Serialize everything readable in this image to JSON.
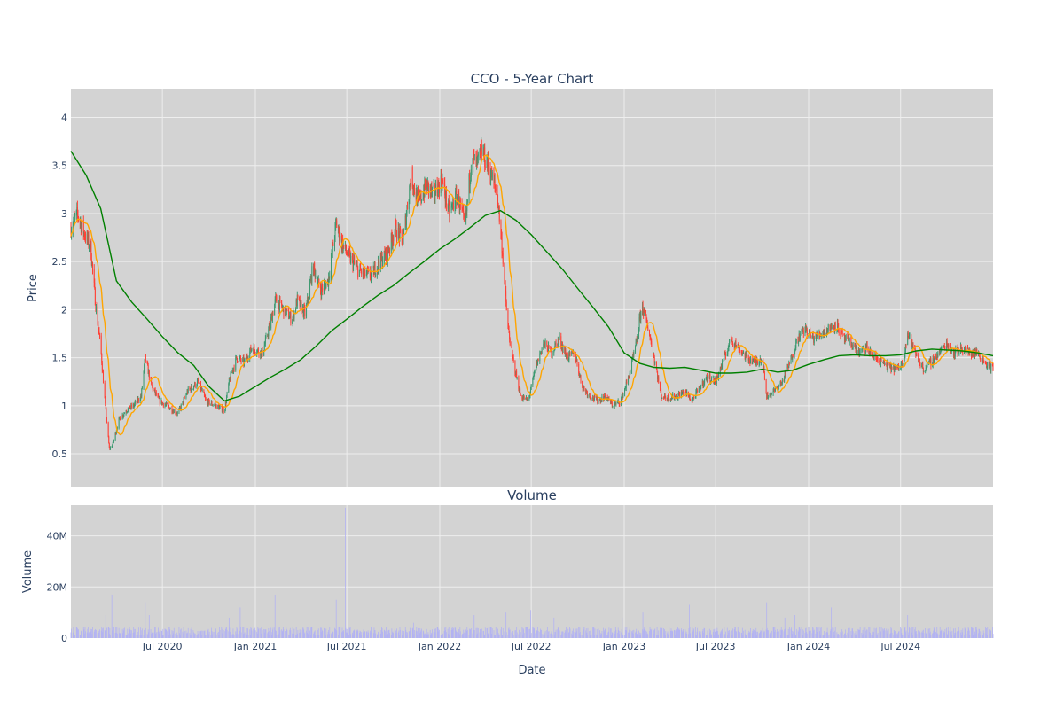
{
  "colors": {
    "plot_bg": "#d3d3d3",
    "grid": "#eeeeee",
    "up": "#3d9970",
    "down": "#ff4136",
    "ma_short": "#ffa500",
    "ma_long": "#008000",
    "volume": "#b3b3f2",
    "text": "#2a3f5f"
  },
  "chart_data": [
    {
      "type": "candlestick",
      "title": "CCO - 5-Year Chart",
      "xlabel": "",
      "ylabel": "Price",
      "xlim": [
        "2020-01-02",
        "2024-12-31"
      ],
      "ylim": [
        0.15,
        4.3
      ],
      "yticks": [
        "0.5",
        "1",
        "1.5",
        "2",
        "2.5",
        "3",
        "3.5",
        "4"
      ],
      "grid": true,
      "legend": false,
      "price_path": [
        [
          "2020-01-02",
          2.85
        ],
        [
          "2020-01-15",
          3.0
        ],
        [
          "2020-01-28",
          2.8
        ],
        [
          "2020-02-10",
          2.65
        ],
        [
          "2020-02-20",
          2.05
        ],
        [
          "2020-03-01",
          1.6
        ],
        [
          "2020-03-10",
          1.0
        ],
        [
          "2020-03-18",
          0.55
        ],
        [
          "2020-03-25",
          0.6
        ],
        [
          "2020-04-06",
          0.85
        ],
        [
          "2020-04-20",
          0.95
        ],
        [
          "2020-05-05",
          1.0
        ],
        [
          "2020-05-20",
          1.1
        ],
        [
          "2020-05-28",
          1.5
        ],
        [
          "2020-06-10",
          1.2
        ],
        [
          "2020-06-25",
          1.05
        ],
        [
          "2020-07-15",
          0.98
        ],
        [
          "2020-08-01",
          0.92
        ],
        [
          "2020-08-20",
          1.15
        ],
        [
          "2020-09-10",
          1.25
        ],
        [
          "2020-09-25",
          1.05
        ],
        [
          "2020-10-15",
          1.0
        ],
        [
          "2020-11-01",
          0.95
        ],
        [
          "2020-11-10",
          1.25
        ],
        [
          "2020-11-25",
          1.5
        ],
        [
          "2020-12-10",
          1.45
        ],
        [
          "2020-12-25",
          1.6
        ],
        [
          "2021-01-15",
          1.55
        ],
        [
          "2021-01-28",
          1.8
        ],
        [
          "2021-02-10",
          2.1
        ],
        [
          "2021-02-25",
          2.0
        ],
        [
          "2021-03-15",
          1.9
        ],
        [
          "2021-03-25",
          2.1
        ],
        [
          "2021-04-10",
          1.95
        ],
        [
          "2021-04-25",
          2.45
        ],
        [
          "2021-05-10",
          2.2
        ],
        [
          "2021-05-25",
          2.3
        ],
        [
          "2021-06-10",
          2.9
        ],
        [
          "2021-06-20",
          2.7
        ],
        [
          "2021-07-05",
          2.55
        ],
        [
          "2021-07-25",
          2.4
        ],
        [
          "2021-08-15",
          2.35
        ],
        [
          "2021-09-05",
          2.5
        ],
        [
          "2021-09-20",
          2.6
        ],
        [
          "2021-10-05",
          2.85
        ],
        [
          "2021-10-20",
          2.7
        ],
        [
          "2021-11-05",
          3.4
        ],
        [
          "2021-11-20",
          3.1
        ],
        [
          "2021-12-05",
          3.3
        ],
        [
          "2021-12-20",
          3.2
        ],
        [
          "2022-01-05",
          3.35
        ],
        [
          "2022-01-20",
          3.0
        ],
        [
          "2022-02-05",
          3.2
        ],
        [
          "2022-02-20",
          2.85
        ],
        [
          "2022-03-05",
          3.6
        ],
        [
          "2022-03-15",
          3.5
        ],
        [
          "2022-03-25",
          3.65
        ],
        [
          "2022-04-10",
          3.45
        ],
        [
          "2022-04-25",
          3.2
        ],
        [
          "2022-05-05",
          2.6
        ],
        [
          "2022-05-15",
          1.85
        ],
        [
          "2022-05-25",
          1.5
        ],
        [
          "2022-06-10",
          1.1
        ],
        [
          "2022-06-25",
          1.05
        ],
        [
          "2022-07-10",
          1.4
        ],
        [
          "2022-07-25",
          1.65
        ],
        [
          "2022-08-10",
          1.55
        ],
        [
          "2022-08-25",
          1.7
        ],
        [
          "2022-09-10",
          1.5
        ],
        [
          "2022-09-25",
          1.55
        ],
        [
          "2022-10-10",
          1.2
        ],
        [
          "2022-10-25",
          1.1
        ],
        [
          "2022-11-10",
          1.05
        ],
        [
          "2022-11-25",
          1.1
        ],
        [
          "2022-12-10",
          1.0
        ],
        [
          "2022-12-25",
          1.05
        ],
        [
          "2023-01-10",
          1.3
        ],
        [
          "2023-01-25",
          1.65
        ],
        [
          "2023-02-05",
          2.05
        ],
        [
          "2023-02-20",
          1.75
        ],
        [
          "2023-03-05",
          1.4
        ],
        [
          "2023-03-15",
          1.1
        ],
        [
          "2023-03-30",
          1.08
        ],
        [
          "2023-04-15",
          1.1
        ],
        [
          "2023-05-01",
          1.15
        ],
        [
          "2023-05-15",
          1.05
        ],
        [
          "2023-06-01",
          1.2
        ],
        [
          "2023-06-15",
          1.3
        ],
        [
          "2023-07-01",
          1.25
        ],
        [
          "2023-07-15",
          1.45
        ],
        [
          "2023-08-01",
          1.7
        ],
        [
          "2023-08-15",
          1.6
        ],
        [
          "2023-09-01",
          1.5
        ],
        [
          "2023-09-15",
          1.45
        ],
        [
          "2023-10-01",
          1.5
        ],
        [
          "2023-10-10",
          1.1
        ],
        [
          "2023-10-25",
          1.15
        ],
        [
          "2023-11-10",
          1.25
        ],
        [
          "2023-11-25",
          1.45
        ],
        [
          "2023-12-10",
          1.7
        ],
        [
          "2023-12-25",
          1.8
        ],
        [
          "2024-01-10",
          1.7
        ],
        [
          "2024-01-25",
          1.75
        ],
        [
          "2024-02-10",
          1.8
        ],
        [
          "2024-02-25",
          1.85
        ],
        [
          "2024-03-10",
          1.7
        ],
        [
          "2024-03-25",
          1.65
        ],
        [
          "2024-04-10",
          1.55
        ],
        [
          "2024-04-25",
          1.6
        ],
        [
          "2024-05-10",
          1.5
        ],
        [
          "2024-05-25",
          1.45
        ],
        [
          "2024-06-10",
          1.4
        ],
        [
          "2024-06-25",
          1.38
        ],
        [
          "2024-07-05",
          1.45
        ],
        [
          "2024-07-15",
          1.75
        ],
        [
          "2024-07-30",
          1.55
        ],
        [
          "2024-08-15",
          1.38
        ],
        [
          "2024-08-30",
          1.45
        ],
        [
          "2024-09-15",
          1.55
        ],
        [
          "2024-09-30",
          1.65
        ],
        [
          "2024-10-15",
          1.55
        ],
        [
          "2024-10-30",
          1.6
        ],
        [
          "2024-11-15",
          1.55
        ],
        [
          "2024-11-30",
          1.55
        ],
        [
          "2024-12-15",
          1.45
        ],
        [
          "2024-12-31",
          1.38
        ]
      ],
      "ma_long_path": [
        [
          "2020-01-02",
          3.65
        ],
        [
          "2020-02-01",
          3.4
        ],
        [
          "2020-03-01",
          3.05
        ],
        [
          "2020-04-01",
          2.3
        ],
        [
          "2020-05-01",
          2.08
        ],
        [
          "2020-06-01",
          1.9
        ],
        [
          "2020-07-01",
          1.72
        ],
        [
          "2020-08-01",
          1.55
        ],
        [
          "2020-09-01",
          1.42
        ],
        [
          "2020-10-01",
          1.2
        ],
        [
          "2020-11-01",
          1.05
        ],
        [
          "2020-12-01",
          1.1
        ],
        [
          "2021-01-01",
          1.2
        ],
        [
          "2021-02-01",
          1.3
        ],
        [
          "2021-03-01",
          1.38
        ],
        [
          "2021-04-01",
          1.48
        ],
        [
          "2021-05-01",
          1.62
        ],
        [
          "2021-06-01",
          1.78
        ],
        [
          "2021-07-01",
          1.9
        ],
        [
          "2021-08-01",
          2.03
        ],
        [
          "2021-09-01",
          2.15
        ],
        [
          "2021-10-01",
          2.25
        ],
        [
          "2021-11-01",
          2.38
        ],
        [
          "2021-12-01",
          2.5
        ],
        [
          "2022-01-01",
          2.63
        ],
        [
          "2022-02-01",
          2.74
        ],
        [
          "2022-03-01",
          2.85
        ],
        [
          "2022-04-01",
          2.98
        ],
        [
          "2022-05-01",
          3.03
        ],
        [
          "2022-06-01",
          2.93
        ],
        [
          "2022-07-01",
          2.78
        ],
        [
          "2022-08-01",
          2.6
        ],
        [
          "2022-09-01",
          2.42
        ],
        [
          "2022-10-01",
          2.22
        ],
        [
          "2022-11-01",
          2.02
        ],
        [
          "2022-12-01",
          1.82
        ],
        [
          "2023-01-01",
          1.55
        ],
        [
          "2023-02-01",
          1.44
        ],
        [
          "2023-03-01",
          1.4
        ],
        [
          "2023-04-01",
          1.39
        ],
        [
          "2023-05-01",
          1.4
        ],
        [
          "2023-06-01",
          1.37
        ],
        [
          "2023-07-01",
          1.34
        ],
        [
          "2023-08-01",
          1.34
        ],
        [
          "2023-09-01",
          1.35
        ],
        [
          "2023-10-01",
          1.38
        ],
        [
          "2023-11-01",
          1.35
        ],
        [
          "2023-12-01",
          1.37
        ],
        [
          "2024-01-01",
          1.43
        ],
        [
          "2024-02-01",
          1.48
        ],
        [
          "2024-03-01",
          1.52
        ],
        [
          "2024-04-01",
          1.53
        ],
        [
          "2024-05-01",
          1.52
        ],
        [
          "2024-06-01",
          1.52
        ],
        [
          "2024-07-01",
          1.53
        ],
        [
          "2024-08-01",
          1.57
        ],
        [
          "2024-09-01",
          1.59
        ],
        [
          "2024-10-01",
          1.58
        ],
        [
          "2024-11-01",
          1.57
        ],
        [
          "2024-12-01",
          1.55
        ],
        [
          "2024-12-31",
          1.52
        ]
      ],
      "ma_short_window": 20
    },
    {
      "type": "bar",
      "title": "Volume",
      "xlabel": "Date",
      "ylabel": "Volume",
      "ylim": [
        0,
        52000000
      ],
      "yticks": [
        "0",
        "20M",
        "40M"
      ],
      "xticks": [
        {
          "date": "2020-07-01",
          "label": "Jul 2020"
        },
        {
          "date": "2021-01-01",
          "label": "Jan 2021"
        },
        {
          "date": "2021-07-01",
          "label": "Jul 2021"
        },
        {
          "date": "2022-01-01",
          "label": "Jan 2022"
        },
        {
          "date": "2022-07-01",
          "label": "Jul 2022"
        },
        {
          "date": "2023-01-01",
          "label": "Jan 2023"
        },
        {
          "date": "2023-07-01",
          "label": "Jul 2023"
        },
        {
          "date": "2024-01-01",
          "label": "Jan 2024"
        },
        {
          "date": "2024-07-01",
          "label": "Jul 2024"
        }
      ],
      "volume_spikes": [
        [
          "2020-03-23",
          17000000
        ],
        [
          "2020-03-11",
          9000000
        ],
        [
          "2020-04-10",
          8000000
        ],
        [
          "2020-05-28",
          14000000
        ],
        [
          "2020-06-05",
          9000000
        ],
        [
          "2020-11-10",
          8000000
        ],
        [
          "2020-12-02",
          12000000
        ],
        [
          "2021-02-09",
          17000000
        ],
        [
          "2021-02-20",
          9000000
        ],
        [
          "2021-06-10",
          15000000
        ],
        [
          "2021-06-28",
          51000000
        ],
        [
          "2021-11-10",
          6000000
        ],
        [
          "2022-03-10",
          9000000
        ],
        [
          "2022-05-12",
          10000000
        ],
        [
          "2022-06-30",
          11000000
        ],
        [
          "2022-08-15",
          8000000
        ],
        [
          "2022-12-28",
          8000000
        ],
        [
          "2023-02-07",
          10000000
        ],
        [
          "2023-05-10",
          13000000
        ],
        [
          "2023-10-10",
          14000000
        ],
        [
          "2023-11-15",
          8000000
        ],
        [
          "2023-12-05",
          9000000
        ],
        [
          "2024-02-15",
          12000000
        ],
        [
          "2024-07-15",
          9000000
        ],
        [
          "2024-10-20",
          7000000
        ]
      ]
    }
  ]
}
